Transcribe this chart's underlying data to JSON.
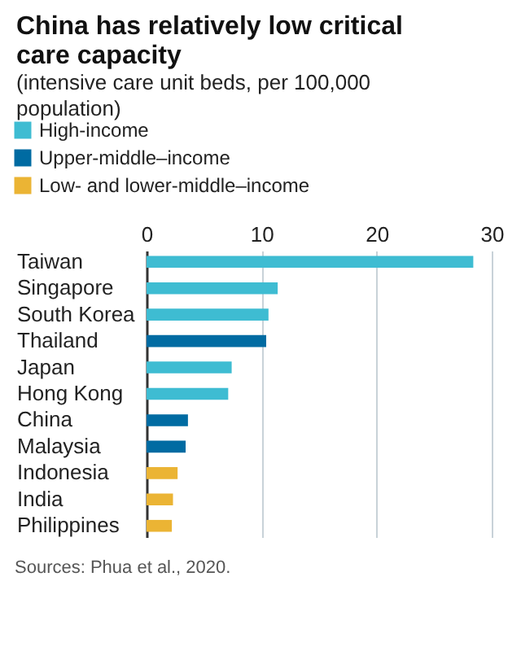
{
  "chart_data": {
    "type": "bar",
    "orientation": "horizontal",
    "title": "China has relatively low critical care capacity",
    "subtitle": "(intensive care unit beds, per 100,000 population)",
    "categories": [
      "Taiwan",
      "Singapore",
      "South Korea",
      "Thailand",
      "Japan",
      "Hong Kong",
      "China",
      "Malaysia",
      "Indonesia",
      "India",
      "Philippines"
    ],
    "series": [
      {
        "name": "High-income",
        "color": "#3ebcd2",
        "values": [
          28.4,
          11.4,
          10.6,
          null,
          7.4,
          7.1,
          null,
          null,
          null,
          null,
          null
        ]
      },
      {
        "name": "Upper-middle–income",
        "color": "#006ba2",
        "values": [
          null,
          null,
          null,
          10.4,
          null,
          null,
          3.6,
          3.4,
          null,
          null,
          null
        ]
      },
      {
        "name": "Low- and lower-middle–income",
        "color": "#ebb434",
        "values": [
          null,
          null,
          null,
          null,
          null,
          null,
          null,
          null,
          2.7,
          2.3,
          2.2
        ]
      }
    ],
    "xlim": [
      0,
      30
    ],
    "xticks": [
      0,
      10,
      20,
      30
    ],
    "grid": "x",
    "legend": "top",
    "annotations": [
      "Sources: Phua et al., 2020."
    ]
  }
}
